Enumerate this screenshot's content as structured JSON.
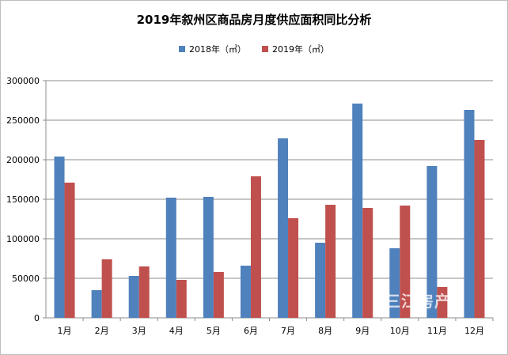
{
  "chart_data": {
    "type": "bar",
    "title": "2019年叙州区商品房月度供应面积同比分析",
    "categories": [
      "1月",
      "2月",
      "3月",
      "4月",
      "5月",
      "6月",
      "7月",
      "8月",
      "9月",
      "10月",
      "11月",
      "12月"
    ],
    "series": [
      {
        "name": "2018年（㎡）",
        "color": "#4f81bd",
        "values": [
          204000,
          35000,
          53000,
          152000,
          153000,
          66000,
          227000,
          95000,
          271000,
          88000,
          192000,
          263000
        ]
      },
      {
        "name": "2019年（㎡）",
        "color": "#c0504d",
        "values": [
          171000,
          74000,
          65000,
          48000,
          58000,
          179000,
          126000,
          143000,
          139000,
          142000,
          39000,
          225000
        ]
      }
    ],
    "yticks": [
      "0",
      "50000",
      "100000",
      "150000",
      "200000",
      "250000",
      "300000"
    ],
    "ylim": [
      0,
      300000
    ],
    "grid": true,
    "legend_position": "top"
  },
  "watermark": "三江房产"
}
